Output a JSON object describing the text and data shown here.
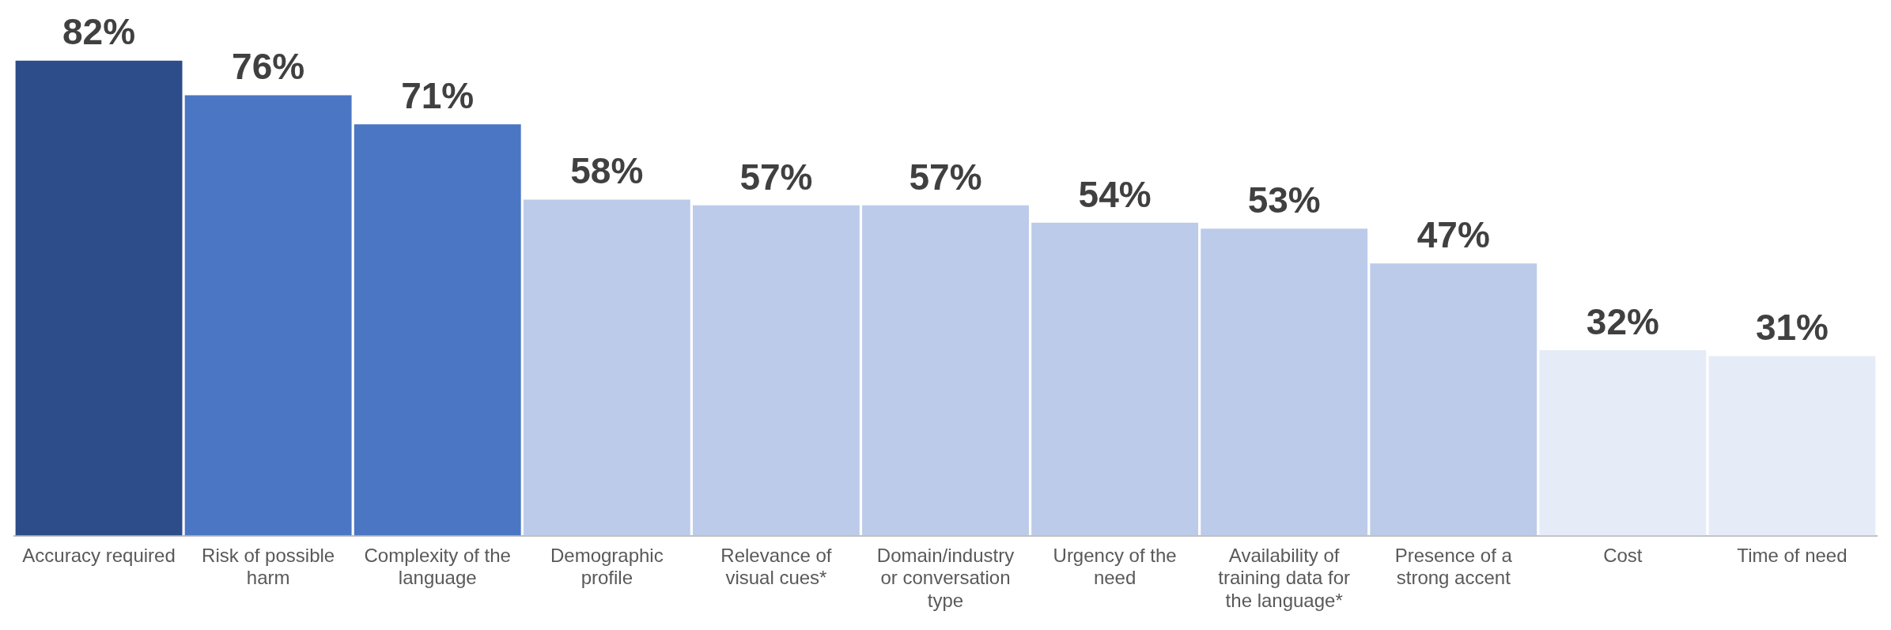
{
  "chart_data": {
    "type": "bar",
    "categories": [
      "Accuracy required",
      "Risk of possible harm",
      "Complexity of the language",
      "Demographic profile",
      "Relevance of visual cues*",
      "Domain/industry or conversation type",
      "Urgency of the need",
      "Availability of training data for the language*",
      "Presence of a strong accent",
      "Cost",
      "Time of need"
    ],
    "values": [
      82,
      76,
      71,
      58,
      57,
      57,
      54,
      53,
      47,
      32,
      31
    ],
    "colors": [
      "#2c4d8a",
      "#4a76c4",
      "#4a76c4",
      "#bdcbea",
      "#bdcbea",
      "#bdcbea",
      "#bdcbea",
      "#bdcbea",
      "#bdcbea",
      "#e6ecf7",
      "#e6ecf7"
    ],
    "value_labels": [
      "82%",
      "76%",
      "71%",
      "58%",
      "57%",
      "57%",
      "54%",
      "53%",
      "47%",
      "32%",
      "31%"
    ],
    "grid": false,
    "legend": false
  }
}
